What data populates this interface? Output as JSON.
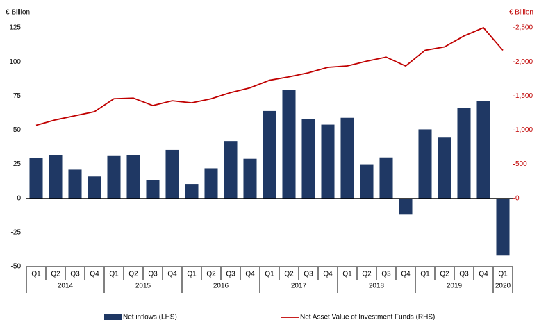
{
  "chart_data": {
    "type": "bar",
    "y_label": "€ Billion",
    "y2_label": "€ Billion",
    "categories": [
      "Q1",
      "Q2",
      "Q3",
      "Q4",
      "Q1",
      "Q2",
      "Q3",
      "Q4",
      "Q1",
      "Q2",
      "Q3",
      "Q4",
      "Q1",
      "Q2",
      "Q3",
      "Q4",
      "Q1",
      "Q2",
      "Q3",
      "Q4",
      "Q1",
      "Q2",
      "Q3",
      "Q4",
      "Q1"
    ],
    "years": [
      "2014",
      "2015",
      "2016",
      "2017",
      "2018",
      "2019",
      "2020"
    ],
    "series": [
      {
        "name": "Net inflows (LHS)",
        "type": "bar",
        "color": "#1f3864",
        "values": [
          29.5,
          31.5,
          21,
          16,
          31,
          31.5,
          13.5,
          35.5,
          10.5,
          22,
          42,
          29,
          64,
          79.5,
          58,
          54,
          59,
          25,
          30,
          -12,
          50.5,
          44.5,
          66,
          71.5,
          -42
        ]
      },
      {
        "name": "Net Asset Value of Investment Funds (RHS)",
        "type": "line",
        "color": "#c00000",
        "axis": "y2",
        "values": [
          1070,
          1150,
          1210,
          1270,
          1460,
          1470,
          1360,
          1430,
          1400,
          1460,
          1550,
          1620,
          1730,
          1780,
          1840,
          1920,
          1940,
          2010,
          2070,
          1940,
          2170,
          2220,
          2380,
          2500,
          2170
        ]
      }
    ],
    "ylim": [
      -50,
      125
    ],
    "yticks": [
      -50,
      -25,
      0,
      25,
      50,
      75,
      100,
      125
    ],
    "y2lim": [
      -1000,
      2500
    ],
    "y2ticks": [
      0,
      500,
      {
        "value": 1000,
        "label": "1,000"
      },
      {
        "value": 1500,
        "label": "1,500"
      },
      {
        "value": 2000,
        "label": "2,000"
      },
      {
        "value": 2500,
        "label": "2,500"
      }
    ],
    "y2_color": "#c00000"
  }
}
